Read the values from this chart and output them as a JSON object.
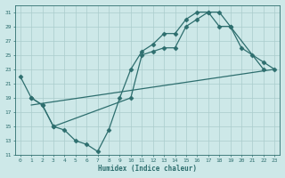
{
  "xlabel": "Humidex (Indice chaleur)",
  "bg_color": "#cde8e8",
  "grid_color": "#aacccc",
  "line_color": "#2d6e6e",
  "xlim": [
    -0.5,
    23.5
  ],
  "ylim": [
    11,
    32
  ],
  "xticks": [
    0,
    1,
    2,
    3,
    4,
    5,
    6,
    7,
    8,
    9,
    10,
    11,
    12,
    13,
    14,
    15,
    16,
    17,
    18,
    19,
    20,
    21,
    22,
    23
  ],
  "yticks": [
    11,
    13,
    15,
    17,
    19,
    21,
    23,
    25,
    27,
    29,
    31
  ],
  "line1_x": [
    0,
    1,
    2,
    3,
    4,
    5,
    6,
    7,
    8,
    9,
    10,
    11,
    12,
    13,
    14,
    15,
    16,
    17,
    18,
    19,
    22
  ],
  "line1_y": [
    22,
    19,
    18,
    15,
    14.5,
    13,
    12.5,
    11.5,
    14.5,
    19,
    23,
    25.5,
    26.5,
    28,
    28,
    30,
    31,
    31,
    31,
    29,
    23
  ],
  "line2_x": [
    1,
    2,
    3,
    10,
    11,
    12,
    13,
    14,
    15,
    16,
    17,
    18,
    19,
    20,
    21,
    22,
    23
  ],
  "line2_y": [
    19,
    18,
    15,
    19,
    25,
    25.5,
    26,
    26,
    29,
    30,
    31,
    29,
    29,
    26,
    25,
    24,
    23
  ],
  "line3_x": [
    1,
    23
  ],
  "line3_y": [
    18,
    23
  ]
}
